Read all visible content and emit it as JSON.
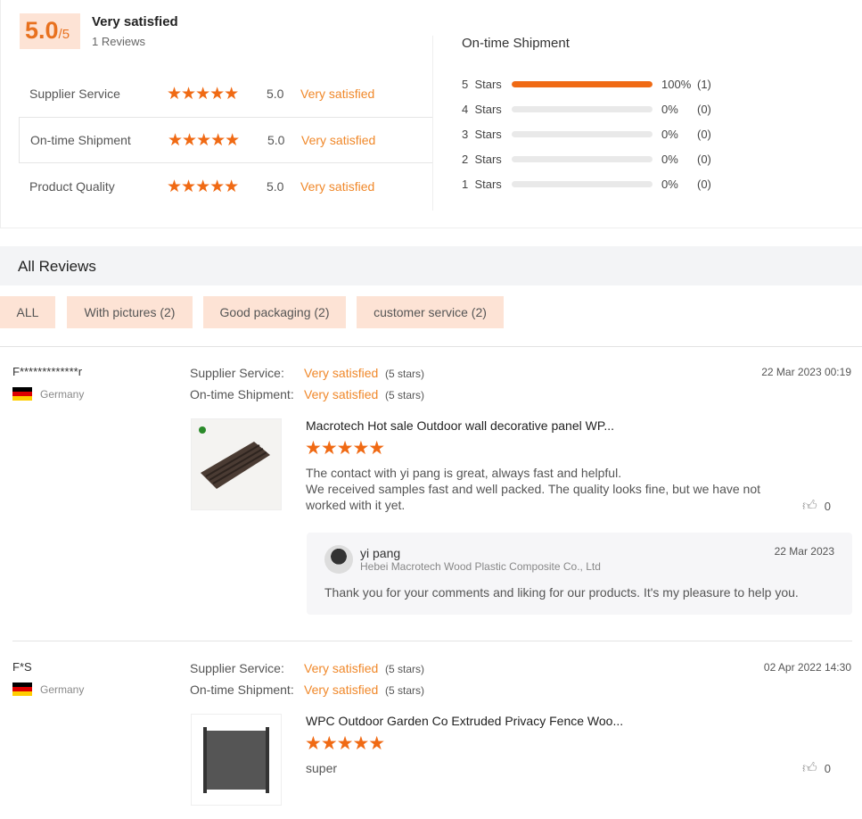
{
  "summary": {
    "score": "5.0",
    "out_of": "/5",
    "title": "Very satisfied",
    "reviews": "1 Reviews",
    "rows": [
      {
        "label": "Supplier Service",
        "stars": 5,
        "value": "5.0",
        "text": "Very satisfied"
      },
      {
        "label": "On-time Shipment",
        "stars": 5,
        "value": "5.0",
        "text": "Very satisfied"
      },
      {
        "label": "Product Quality",
        "stars": 5,
        "value": "5.0",
        "text": "Very satisfied"
      }
    ]
  },
  "distribution": {
    "title": "On-time Shipment",
    "rows": [
      {
        "label": "5  Stars",
        "percent": 100,
        "pct": "100%",
        "count": "(1)"
      },
      {
        "label": "4  Stars",
        "percent": 0,
        "pct": "0%",
        "count": "(0)"
      },
      {
        "label": "3  Stars",
        "percent": 0,
        "pct": "0%",
        "count": "(0)"
      },
      {
        "label": "2  Stars",
        "percent": 0,
        "pct": "0%",
        "count": "(0)"
      },
      {
        "label": "1  Stars",
        "percent": 0,
        "pct": "0%",
        "count": "(0)"
      }
    ]
  },
  "all_reviews": {
    "title": "All Reviews",
    "filters": [
      "ALL",
      "With pictures (2)",
      "Good packaging (2)",
      "customer service (2)"
    ]
  },
  "reviews": [
    {
      "user": "F*************r",
      "country": "Germany",
      "supplier_label": "Supplier Service:",
      "supplier_value": "Very satisfied",
      "supplier_stars": "(5 stars)",
      "ship_label": "On-time Shipment:",
      "ship_value": "Very satisfied",
      "ship_stars": "(5 stars)",
      "date": "22 Mar 2023 00:19",
      "product": "Macrotech Hot sale Outdoor wall decorative panel WP...",
      "rating": 5,
      "text1": "The contact with yi pang is great, always fast and helpful.",
      "text2": "We received samples fast and well packed. The quality looks fine, but we have not worked with it yet.",
      "likes": "0",
      "reply": {
        "name": "yi pang",
        "company": "Hebei Macrotech Wood Plastic Composite Co., Ltd",
        "date": "22 Mar 2023",
        "text": "Thank you for your comments and liking for our products. It's my pleasure to help you."
      }
    },
    {
      "user": "F*S",
      "country": "Germany",
      "supplier_label": "Supplier Service:",
      "supplier_value": "Very satisfied",
      "supplier_stars": "(5 stars)",
      "ship_label": "On-time Shipment:",
      "ship_value": "Very satisfied",
      "ship_stars": "(5 stars)",
      "date": "02 Apr 2022 14:30",
      "product": "WPC Outdoor Garden Co Extruded Privacy Fence Woo...",
      "rating": 5,
      "text1": "super",
      "likes": "0"
    }
  ],
  "colors": {
    "accent": "#f06a14",
    "chip": "#fde3d5"
  }
}
